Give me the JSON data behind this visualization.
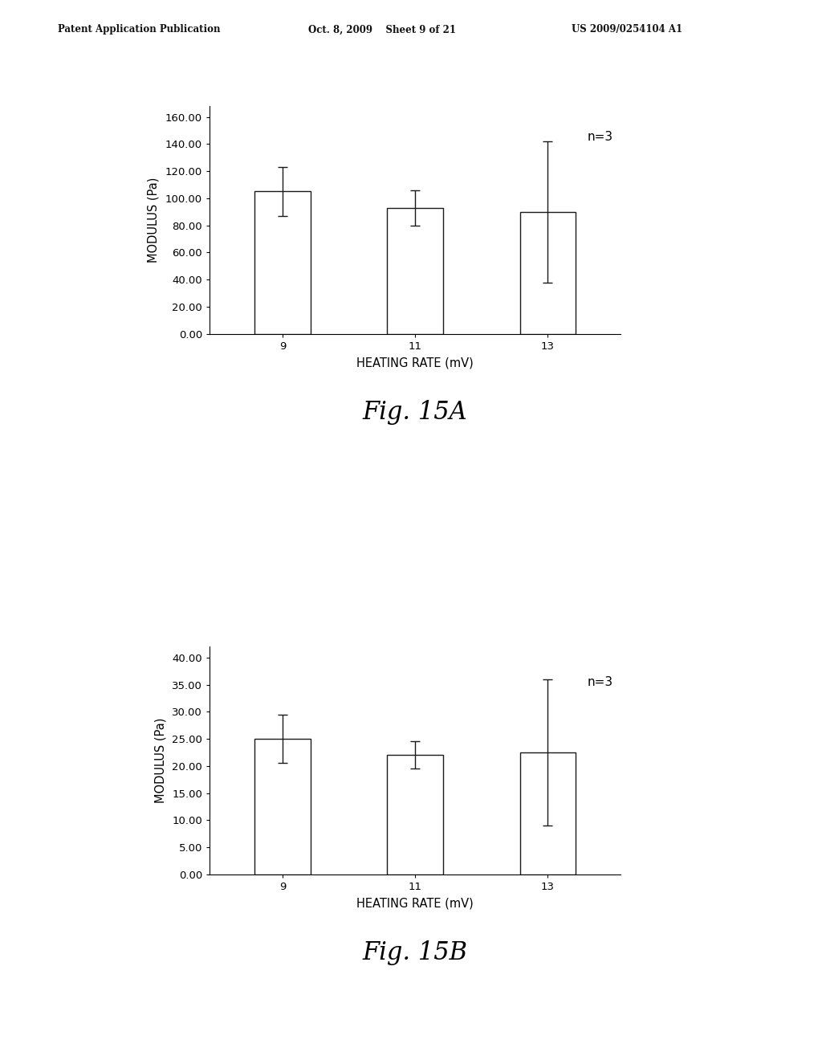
{
  "header_left": "Patent Application Publication",
  "header_center": "Oct. 8, 2009    Sheet 9 of 21",
  "header_right": "US 2009/0254104 A1",
  "chart_a": {
    "categories": [
      "9",
      "11",
      "13"
    ],
    "values": [
      105.0,
      93.0,
      90.0
    ],
    "errors": [
      18.0,
      13.0,
      52.0
    ],
    "ylabel": "MODULUS (Pa)",
    "xlabel": "HEATING RATE (mV)",
    "yticks": [
      0.0,
      20.0,
      40.0,
      60.0,
      80.0,
      100.0,
      120.0,
      140.0,
      160.0
    ],
    "ylim": [
      0,
      168
    ],
    "annotation": "n=3",
    "fig_label": "Fig. 15A"
  },
  "chart_b": {
    "categories": [
      "9",
      "11",
      "13"
    ],
    "values": [
      25.0,
      22.0,
      22.5
    ],
    "errors": [
      4.5,
      2.5,
      13.5
    ],
    "ylabel": "MODULUS (Pa)",
    "xlabel": "HEATING RATE (mV)",
    "yticks": [
      0.0,
      5.0,
      10.0,
      15.0,
      20.0,
      25.0,
      30.0,
      35.0,
      40.0
    ],
    "ylim": [
      0,
      42
    ],
    "annotation": "n=3",
    "fig_label": "Fig. 15B"
  },
  "background_color": "#ffffff",
  "bar_color": "#ffffff",
  "bar_edgecolor": "#1a1a1a",
  "bar_linewidth": 1.0,
  "error_color": "#1a1a1a",
  "error_linewidth": 1.0,
  "error_capsize": 4,
  "header_fontsize": 8.5,
  "tick_fontsize": 9.5,
  "label_fontsize": 10.5,
  "annotation_fontsize": 11,
  "fig_label_fontsize": 22
}
